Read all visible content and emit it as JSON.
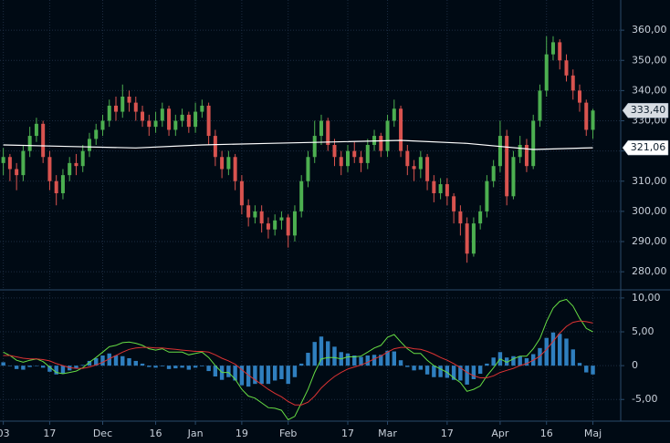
{
  "chart_data": [
    {
      "type": "candlestick",
      "xlim": [
        -0.5,
        93.2
      ],
      "ylim": [
        274,
        370
      ],
      "yticks": [
        {
          "value": 280,
          "label": "280,00"
        },
        {
          "value": 290,
          "label": "290,00"
        },
        {
          "value": 300,
          "label": "300,00"
        },
        {
          "value": 310,
          "label": "310,00"
        },
        {
          "value": 320,
          "label": "320,00"
        },
        {
          "value": 330,
          "label": "330,00"
        },
        {
          "value": 340,
          "label": "340,00"
        },
        {
          "value": 350,
          "label": "350,00"
        },
        {
          "value": 360,
          "label": "360,00"
        }
      ],
      "xticks": [
        {
          "value": 0,
          "label": "03"
        },
        {
          "value": 7,
          "label": "17"
        },
        {
          "value": 15,
          "label": "Dec"
        },
        {
          "value": 23,
          "label": "16"
        },
        {
          "value": 29,
          "label": "Jan"
        },
        {
          "value": 36,
          "label": "19"
        },
        {
          "value": 43,
          "label": "Feb"
        },
        {
          "value": 52,
          "label": "17"
        },
        {
          "value": 58,
          "label": "Mar"
        },
        {
          "value": 67,
          "label": "17"
        },
        {
          "value": 75,
          "label": "Apr"
        },
        {
          "value": 82,
          "label": "16"
        },
        {
          "value": 89,
          "label": "Maj"
        }
      ],
      "grid": true,
      "up_color": "#4caf50",
      "down_color": "#d9534f",
      "open": [
        316,
        318,
        314,
        312,
        320,
        325,
        329,
        318,
        310,
        306,
        312,
        316,
        315,
        320,
        324,
        327,
        330,
        335,
        333,
        338,
        336,
        333,
        330,
        328,
        330,
        334,
        327,
        330,
        332,
        328,
        333,
        335,
        325,
        318,
        314,
        318,
        310,
        302,
        298,
        300,
        296,
        294,
        297,
        298,
        292,
        300,
        310,
        318,
        325,
        330,
        322,
        318,
        315,
        320,
        318,
        316,
        322,
        325,
        320,
        330,
        334,
        320,
        315,
        314,
        318,
        310,
        306,
        309,
        305,
        300,
        296,
        286,
        296,
        300,
        310,
        315,
        325,
        305,
        318,
        322,
        315,
        330,
        340,
        352,
        356,
        350,
        345,
        340,
        336,
        327
      ],
      "high": [
        321,
        319,
        316,
        322,
        328,
        331,
        330,
        320,
        312,
        314,
        318,
        319,
        322,
        326,
        329,
        332,
        337,
        338,
        342,
        340,
        338,
        335,
        332,
        333,
        336,
        335,
        332,
        334,
        333,
        336,
        337,
        336,
        327,
        320,
        320,
        319,
        312,
        304,
        302,
        302,
        298,
        299,
        300,
        299,
        302,
        312,
        320,
        330,
        332,
        331,
        324,
        320,
        322,
        323,
        320,
        324,
        327,
        326,
        332,
        337,
        335,
        322,
        317,
        320,
        319,
        312,
        311,
        311,
        306,
        302,
        298,
        298,
        302,
        312,
        317,
        330,
        327,
        320,
        325,
        324,
        332,
        342,
        358,
        358,
        357,
        352,
        347,
        342,
        337,
        334
      ],
      "low": [
        312,
        310,
        307,
        310,
        318,
        323,
        316,
        307,
        302,
        304,
        310,
        312,
        313,
        318,
        322,
        325,
        328,
        330,
        331,
        333,
        330,
        328,
        325,
        326,
        328,
        325,
        325,
        328,
        326,
        326,
        331,
        322,
        315,
        311,
        312,
        307,
        299,
        295,
        296,
        293,
        291,
        292,
        294,
        288,
        290,
        298,
        308,
        316,
        322,
        320,
        315,
        312,
        313,
        316,
        313,
        314,
        320,
        318,
        318,
        328,
        318,
        312,
        310,
        311,
        307,
        303,
        304,
        302,
        296,
        292,
        283,
        285,
        294,
        298,
        308,
        313,
        302,
        304,
        316,
        313,
        314,
        328,
        338,
        350,
        347,
        343,
        337,
        333,
        325,
        324
      ],
      "close": [
        318,
        314,
        312,
        320,
        325,
        329,
        318,
        310,
        306,
        312,
        316,
        315,
        320,
        324,
        327,
        330,
        335,
        333,
        338,
        336,
        333,
        330,
        328,
        330,
        334,
        327,
        330,
        332,
        328,
        333,
        335,
        325,
        318,
        314,
        318,
        310,
        302,
        298,
        300,
        296,
        294,
        297,
        298,
        292,
        300,
        310,
        318,
        325,
        330,
        322,
        318,
        315,
        320,
        318,
        316,
        322,
        325,
        320,
        330,
        334,
        320,
        315,
        314,
        318,
        310,
        306,
        309,
        305,
        300,
        296,
        286,
        296,
        300,
        310,
        315,
        325,
        305,
        318,
        322,
        315,
        330,
        340,
        352,
        356,
        350,
        345,
        340,
        336,
        327,
        333.4
      ],
      "ma": {
        "color": "#ffffff",
        "x": [
          0,
          10,
          20,
          30,
          40,
          50,
          60,
          70,
          80,
          89
        ],
        "values": [
          322,
          321.5,
          321,
          322,
          322.5,
          323,
          323.5,
          322.5,
          320.5,
          321.06
        ]
      },
      "last_price": {
        "value": 333.4,
        "label": "333,40"
      },
      "ma_last": {
        "value": 321.06,
        "label": "321,06"
      }
    },
    {
      "type": "macd",
      "xlim": [
        -0.5,
        93.2
      ],
      "ylim": [
        -8.2,
        11.2
      ],
      "yticks": [
        {
          "value": -5,
          "label": "-5,00"
        },
        0,
        {
          "value": 5,
          "label": "5,00"
        },
        {
          "value": 10,
          "label": "10,00"
        }
      ],
      "grid": true,
      "bar_color": "#2f7fbf",
      "histogram": [
        0.5,
        0,
        -0.5,
        -0.6,
        -0.2,
        0,
        -0.3,
        -0.9,
        -1.3,
        -1.2,
        -0.7,
        -0.4,
        0.1,
        0.7,
        1.1,
        1.5,
        1.8,
        1.5,
        1.4,
        1.1,
        0.7,
        0.3,
        -0.2,
        -0.3,
        -0.1,
        -0.5,
        -0.4,
        -0.3,
        -0.6,
        -0.3,
        -0.1,
        -0.8,
        -1.6,
        -2.1,
        -1.7,
        -2.2,
        -2.9,
        -3.1,
        -2.7,
        -2.7,
        -2.7,
        -2.2,
        -2,
        -2.7,
        -1.7,
        0.3,
        1.9,
        3.5,
        4.3,
        3.6,
        2.8,
        2,
        1.8,
        1.5,
        1.3,
        1.5,
        1.6,
        1.6,
        2.2,
        2.1,
        0.8,
        -0.2,
        -0.7,
        -0.6,
        -1.3,
        -1.7,
        -1.7,
        -1.8,
        -2.1,
        -2.2,
        -2.8,
        -2,
        -1.2,
        0.3,
        1.2,
        2,
        1.2,
        1.4,
        1.4,
        1.1,
        1.7,
        2.6,
        4.1,
        4.9,
        4.7,
        4,
        2.4,
        0.4,
        -1,
        -1.3
      ],
      "series": [
        {
          "color": "#66dd44",
          "values": [
            2,
            1.5,
            0.8,
            0.5,
            0.8,
            1,
            0.6,
            -0.2,
            -1,
            -1.2,
            -1,
            -0.8,
            -0.3,
            0.5,
            1.2,
            2,
            2.8,
            3,
            3.4,
            3.5,
            3.3,
            3,
            2.5,
            2.3,
            2.5,
            2,
            2,
            2,
            1.6,
            1.8,
            2,
            1.2,
            0,
            -1,
            -1,
            -2,
            -3.5,
            -4.5,
            -4.8,
            -5.5,
            -6.2,
            -6.3,
            -6.6,
            -8,
            -7.5,
            -5.5,
            -3.5,
            -1,
            1,
            1.2,
            1.2,
            1,
            1.3,
            1.3,
            1.4,
            2,
            2.6,
            3,
            4.2,
            4.6,
            3.5,
            2.5,
            1.8,
            1.8,
            0.8,
            0,
            -0.5,
            -1,
            -1.8,
            -2.5,
            -3.8,
            -3.5,
            -3,
            -1.5,
            -0.3,
            1,
            0.5,
            1,
            1.4,
            1.4,
            2.5,
            4,
            6.5,
            8.5,
            9.5,
            9.8,
            8.8,
            7,
            5.5,
            5
          ]
        },
        {
          "color": "#dd3333",
          "values": [
            1.5,
            1.5,
            1.3,
            1.1,
            1,
            1,
            0.9,
            0.7,
            0.3,
            0,
            -0.3,
            -0.4,
            -0.4,
            -0.2,
            0.1,
            0.5,
            1,
            1.5,
            2,
            2.4,
            2.6,
            2.7,
            2.7,
            2.6,
            2.6,
            2.5,
            2.4,
            2.3,
            2.2,
            2.1,
            2.1,
            2,
            1.6,
            1.1,
            0.7,
            0.2,
            -0.6,
            -1.4,
            -2.1,
            -2.8,
            -3.5,
            -4.1,
            -4.6,
            -5.3,
            -5.8,
            -5.8,
            -5.4,
            -4.5,
            -3.3,
            -2.4,
            -1.6,
            -1,
            -0.5,
            -0.2,
            0.1,
            0.5,
            1,
            1.4,
            2,
            2.5,
            2.7,
            2.7,
            2.5,
            2.4,
            2.1,
            1.7,
            1.2,
            0.8,
            0.3,
            -0.3,
            -1,
            -1.5,
            -1.8,
            -1.8,
            -1.5,
            -1,
            -0.7,
            -0.4,
            0,
            0.3,
            0.8,
            1.4,
            2.4,
            3.6,
            4.8,
            5.8,
            6.4,
            6.6,
            6.5,
            6.3
          ]
        }
      ]
    }
  ]
}
